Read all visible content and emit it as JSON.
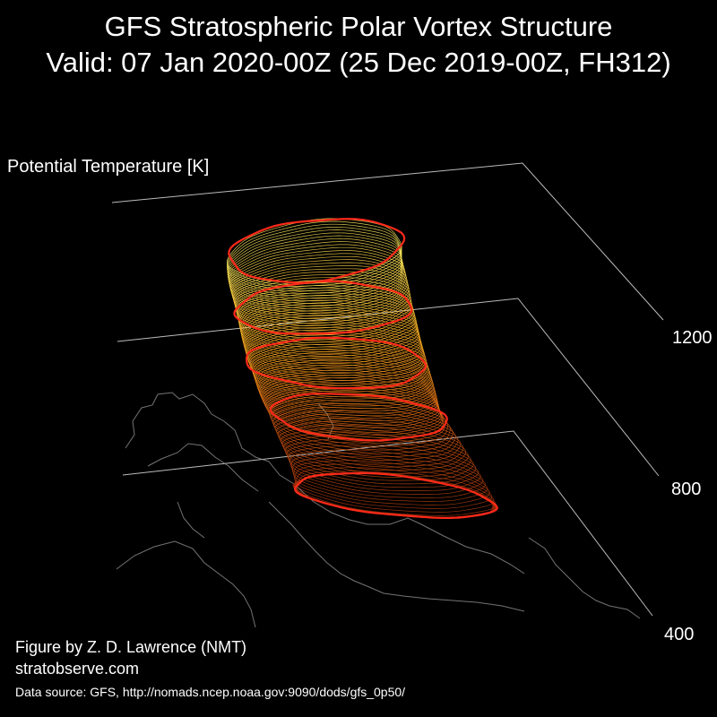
{
  "header": {
    "title": "GFS Stratospheric Polar Vortex Structure",
    "subtitle": "Valid: 07 Jan 2020-00Z  (25 Dec 2019-00Z, FH312)"
  },
  "chart_data": {
    "type": "3d-surface",
    "zlabel": "Potential Temperature [K]",
    "z_ticks": [
      400,
      800,
      1200
    ],
    "zlim": [
      400,
      1400
    ],
    "highlight_levels": [
      {
        "theta": 600,
        "color": "#ff2a1a"
      },
      {
        "theta": 800,
        "color": "#ff2a1a"
      },
      {
        "theta": 1000,
        "color": "#ff2a1a"
      },
      {
        "theta": 1200,
        "color": "#ff2a1a"
      },
      {
        "theta": 1400,
        "color": "#ff2a1a"
      }
    ],
    "colormap": [
      "#8a1f0a",
      "#d65a10",
      "#ffb020",
      "#fff060"
    ],
    "grid": true
  },
  "footer": {
    "credit": "Figure by Z. D. Lawrence (NMT)",
    "website": "stratobserve.com",
    "source": "Data source: GFS, http://nomads.ncep.noaa.gov:9090/dods/gfs_0p50/"
  }
}
